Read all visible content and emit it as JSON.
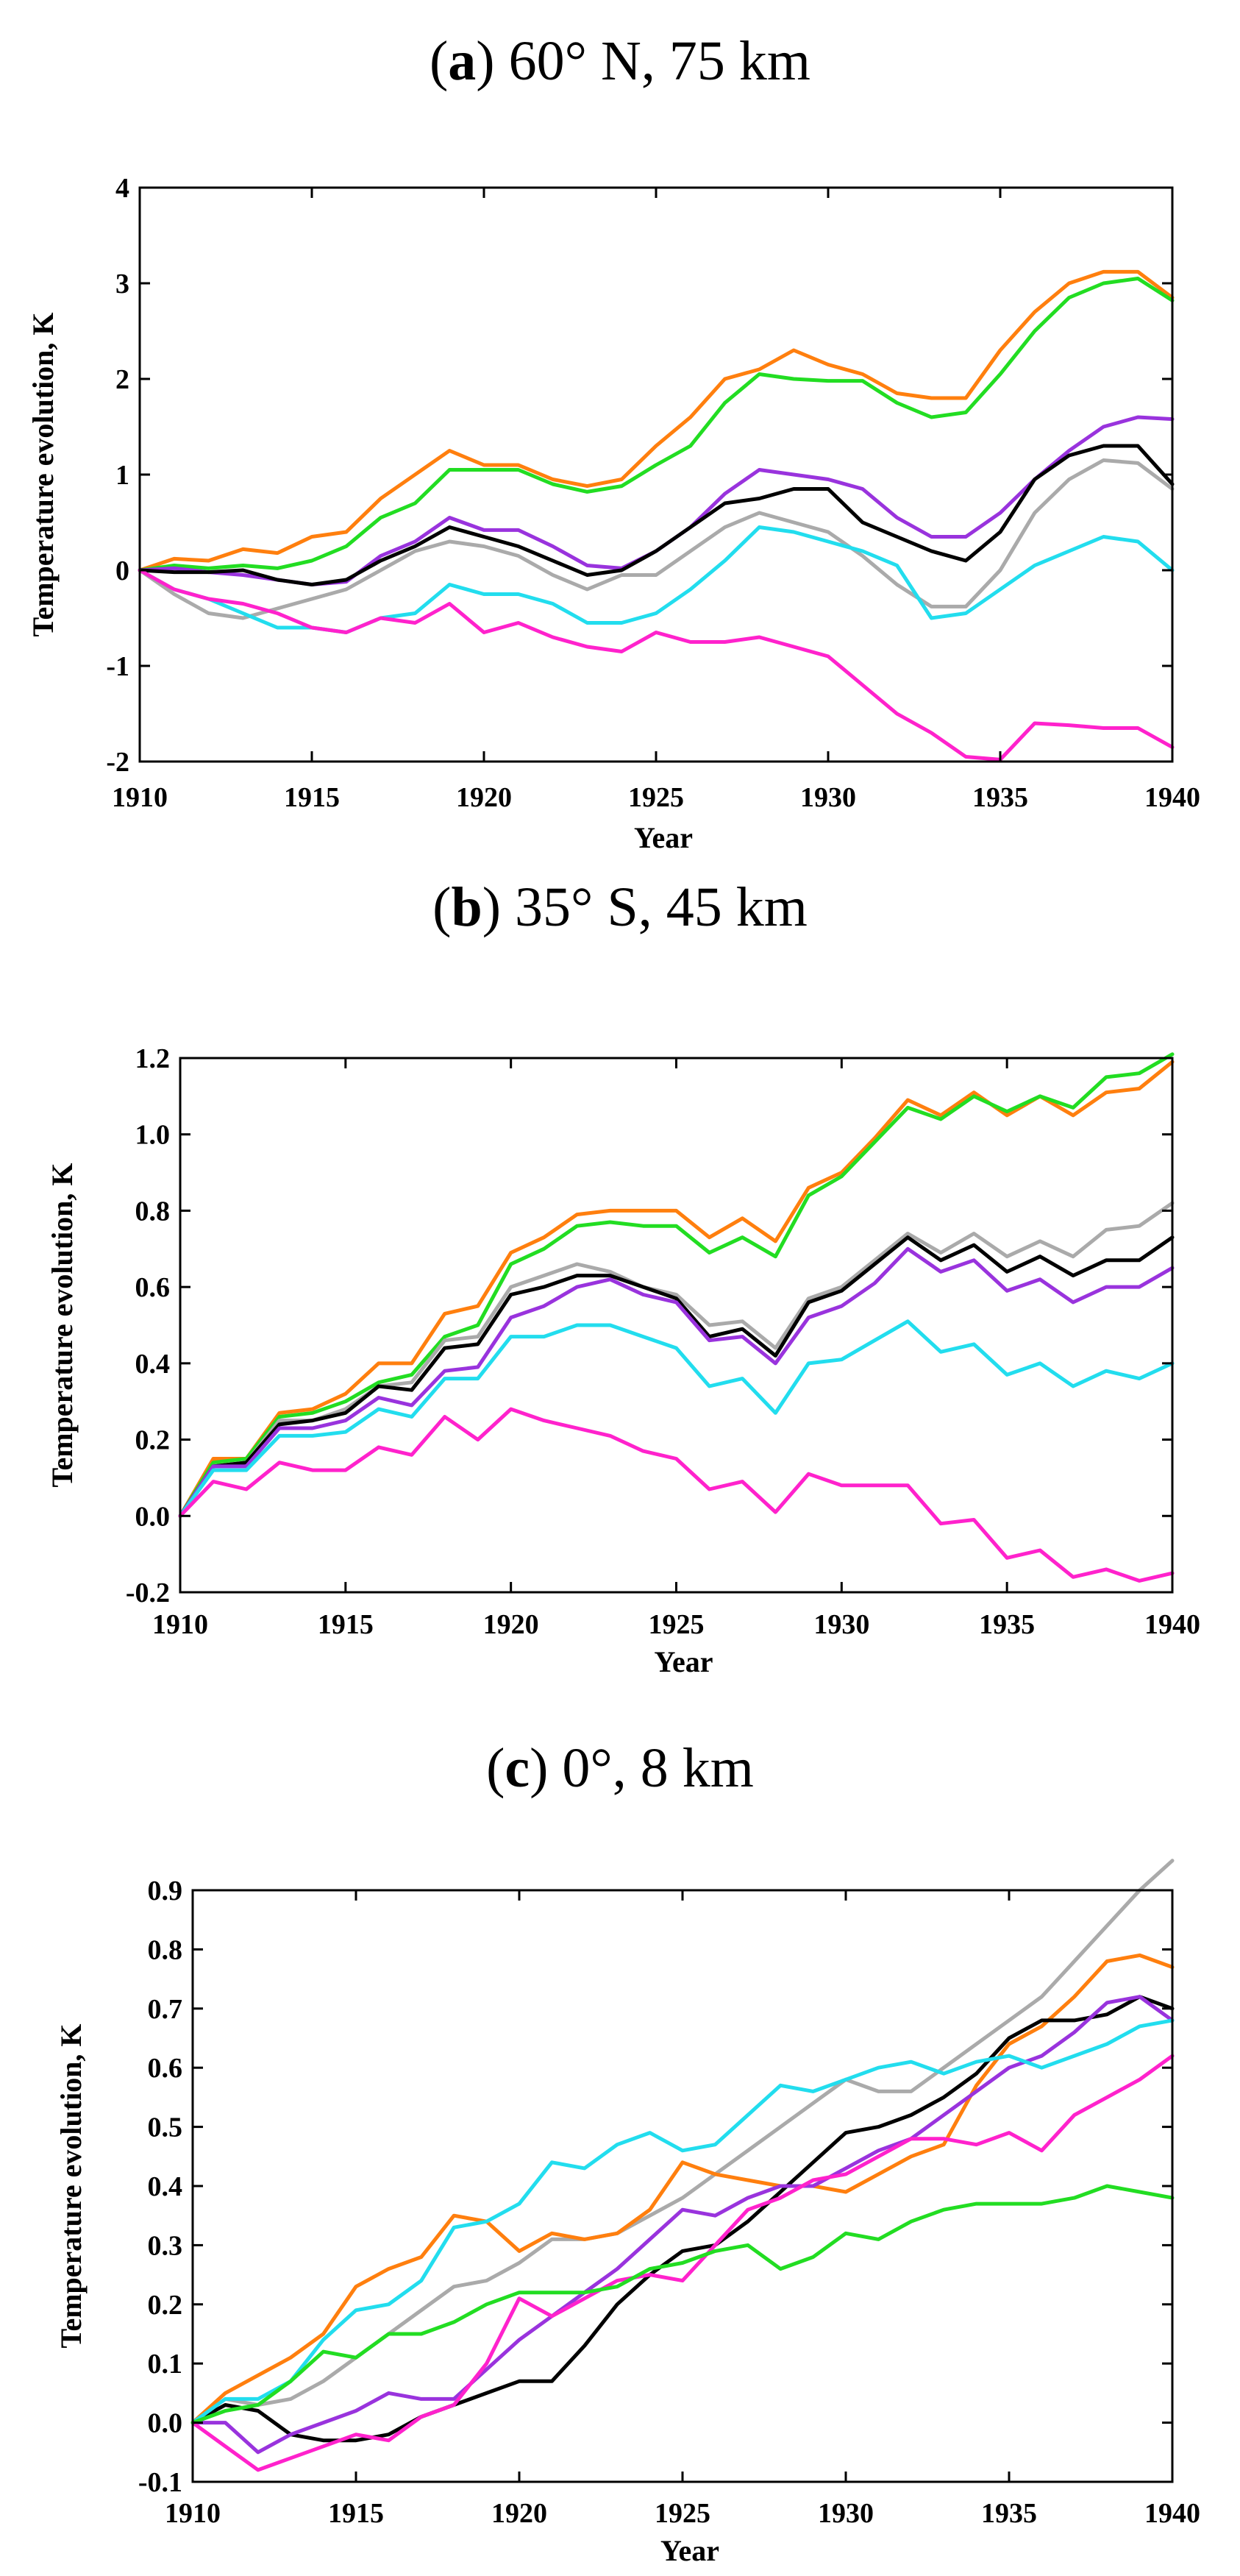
{
  "chart_data": [
    {
      "type": "line",
      "panel_letter": "a",
      "title": ") 60° N, 75 km",
      "title_open": "(",
      "xlabel": "Year",
      "ylabel": "Temperature evolution, K",
      "xlim": [
        1910,
        1940
      ],
      "ylim": [
        -2,
        4
      ],
      "xticks": [
        1910,
        1915,
        1920,
        1925,
        1930,
        1935,
        1940
      ],
      "yticks": [
        -2,
        -1,
        0,
        1,
        2,
        3,
        4
      ],
      "ytick_labels": [
        "-2",
        "-1",
        "0",
        "1",
        "2",
        "3",
        "4"
      ],
      "x": [
        1910,
        1911,
        1912,
        1913,
        1914,
        1915,
        1916,
        1917,
        1918,
        1919,
        1920,
        1921,
        1922,
        1923,
        1924,
        1925,
        1926,
        1927,
        1928,
        1929,
        1930,
        1931,
        1932,
        1933,
        1934,
        1935,
        1936,
        1937,
        1938,
        1939,
        1940
      ],
      "series": [
        {
          "name": "orange",
          "color": "#ff7f0e",
          "values": [
            0,
            0.12,
            0.1,
            0.22,
            0.18,
            0.35,
            0.4,
            0.75,
            1.0,
            1.25,
            1.1,
            1.1,
            0.95,
            0.88,
            0.95,
            1.3,
            1.6,
            2.0,
            2.1,
            2.3,
            2.15,
            2.05,
            1.85,
            1.8,
            1.8,
            2.3,
            2.7,
            3.0,
            3.12,
            3.12,
            2.85
          ]
        },
        {
          "name": "green",
          "color": "#22dd22",
          "values": [
            0,
            0.05,
            0.02,
            0.05,
            0.02,
            0.1,
            0.25,
            0.55,
            0.7,
            1.05,
            1.05,
            1.05,
            0.9,
            0.82,
            0.88,
            1.1,
            1.3,
            1.75,
            2.05,
            2.0,
            1.98,
            1.98,
            1.75,
            1.6,
            1.65,
            2.05,
            2.5,
            2.85,
            3.0,
            3.05,
            2.82
          ]
        },
        {
          "name": "purple",
          "color": "#9933dd",
          "values": [
            0,
            0.02,
            -0.02,
            -0.05,
            -0.1,
            -0.15,
            -0.12,
            0.15,
            0.3,
            0.55,
            0.42,
            0.42,
            0.25,
            0.05,
            0.02,
            0.2,
            0.45,
            0.8,
            1.05,
            1.0,
            0.95,
            0.85,
            0.55,
            0.35,
            0.35,
            0.6,
            0.95,
            1.25,
            1.5,
            1.6,
            1.58
          ]
        },
        {
          "name": "black",
          "color": "#000000",
          "values": [
            0,
            -0.02,
            -0.02,
            0.0,
            -0.1,
            -0.15,
            -0.1,
            0.1,
            0.25,
            0.45,
            0.35,
            0.25,
            0.1,
            -0.05,
            0.0,
            0.2,
            0.45,
            0.7,
            0.75,
            0.85,
            0.85,
            0.5,
            0.35,
            0.2,
            0.1,
            0.4,
            0.95,
            1.2,
            1.3,
            1.3,
            0.9
          ]
        },
        {
          "name": "gray",
          "color": "#aaaaaa",
          "values": [
            0,
            -0.25,
            -0.45,
            -0.5,
            -0.4,
            -0.3,
            -0.2,
            0.0,
            0.2,
            0.3,
            0.25,
            0.15,
            -0.05,
            -0.2,
            -0.05,
            -0.05,
            0.2,
            0.45,
            0.6,
            0.5,
            0.4,
            0.15,
            -0.15,
            -0.38,
            -0.38,
            0.0,
            0.6,
            0.95,
            1.15,
            1.12,
            0.85
          ]
        },
        {
          "name": "cyan",
          "color": "#22ddee",
          "values": [
            0,
            -0.2,
            -0.3,
            -0.45,
            -0.6,
            -0.6,
            -0.65,
            -0.5,
            -0.45,
            -0.15,
            -0.25,
            -0.25,
            -0.35,
            -0.55,
            -0.55,
            -0.45,
            -0.2,
            0.1,
            0.45,
            0.4,
            0.3,
            0.2,
            0.05,
            -0.5,
            -0.45,
            -0.2,
            0.05,
            0.2,
            0.35,
            0.3,
            0.0
          ]
        },
        {
          "name": "magenta",
          "color": "#ff22cc",
          "values": [
            0,
            -0.2,
            -0.3,
            -0.35,
            -0.45,
            -0.6,
            -0.65,
            -0.5,
            -0.55,
            -0.35,
            -0.65,
            -0.55,
            -0.7,
            -0.8,
            -0.85,
            -0.65,
            -0.75,
            -0.75,
            -0.7,
            -0.8,
            -0.9,
            -1.2,
            -1.5,
            -1.7,
            -1.95,
            -1.98,
            -1.6,
            -1.62,
            -1.65,
            -1.65,
            -1.85
          ]
        }
      ]
    },
    {
      "type": "line",
      "panel_letter": "b",
      "title": ") 35° S, 45 km",
      "title_open": "(",
      "xlabel": "Year",
      "ylabel": "Temperature evolution, K",
      "xlim": [
        1910,
        1940
      ],
      "ylim": [
        -0.2,
        1.2
      ],
      "xticks": [
        1910,
        1915,
        1920,
        1925,
        1930,
        1935,
        1940
      ],
      "yticks": [
        -0.2,
        0.0,
        0.2,
        0.4,
        0.6,
        0.8,
        1.0,
        1.2
      ],
      "ytick_labels": [
        "-0.2",
        "0.0",
        "0.2",
        "0.4",
        "0.6",
        "0.8",
        "1.0",
        "1.2"
      ],
      "x": [
        1910,
        1911,
        1912,
        1913,
        1914,
        1915,
        1916,
        1917,
        1918,
        1919,
        1920,
        1921,
        1922,
        1923,
        1924,
        1925,
        1926,
        1927,
        1928,
        1929,
        1930,
        1931,
        1932,
        1933,
        1934,
        1935,
        1936,
        1937,
        1938,
        1939,
        1940
      ],
      "series": [
        {
          "name": "orange",
          "color": "#ff7f0e",
          "values": [
            0,
            0.15,
            0.15,
            0.27,
            0.28,
            0.32,
            0.4,
            0.4,
            0.53,
            0.55,
            0.69,
            0.73,
            0.79,
            0.8,
            0.8,
            0.8,
            0.73,
            0.78,
            0.72,
            0.86,
            0.9,
            0.99,
            1.09,
            1.05,
            1.11,
            1.05,
            1.1,
            1.05,
            1.11,
            1.12,
            1.19
          ]
        },
        {
          "name": "green",
          "color": "#22dd22",
          "values": [
            0,
            0.14,
            0.15,
            0.26,
            0.27,
            0.3,
            0.35,
            0.37,
            0.47,
            0.5,
            0.66,
            0.7,
            0.76,
            0.77,
            0.76,
            0.76,
            0.69,
            0.73,
            0.68,
            0.84,
            0.89,
            0.98,
            1.07,
            1.04,
            1.1,
            1.06,
            1.1,
            1.07,
            1.15,
            1.16,
            1.21
          ]
        },
        {
          "name": "gray",
          "color": "#aaaaaa",
          "values": [
            0,
            0.13,
            0.14,
            0.25,
            0.25,
            0.28,
            0.34,
            0.35,
            0.46,
            0.47,
            0.6,
            0.63,
            0.66,
            0.64,
            0.6,
            0.58,
            0.5,
            0.51,
            0.44,
            0.57,
            0.6,
            0.67,
            0.74,
            0.69,
            0.74,
            0.68,
            0.72,
            0.68,
            0.75,
            0.76,
            0.82
          ]
        },
        {
          "name": "black",
          "color": "#000000",
          "values": [
            0,
            0.13,
            0.14,
            0.24,
            0.25,
            0.27,
            0.34,
            0.33,
            0.44,
            0.45,
            0.58,
            0.6,
            0.63,
            0.63,
            0.6,
            0.57,
            0.47,
            0.49,
            0.42,
            0.56,
            0.59,
            0.66,
            0.73,
            0.67,
            0.71,
            0.64,
            0.68,
            0.63,
            0.67,
            0.67,
            0.73
          ]
        },
        {
          "name": "purple",
          "color": "#9933dd",
          "values": [
            0,
            0.13,
            0.13,
            0.23,
            0.23,
            0.25,
            0.31,
            0.29,
            0.38,
            0.39,
            0.52,
            0.55,
            0.6,
            0.62,
            0.58,
            0.56,
            0.46,
            0.47,
            0.4,
            0.52,
            0.55,
            0.61,
            0.7,
            0.64,
            0.67,
            0.59,
            0.62,
            0.56,
            0.6,
            0.6,
            0.65
          ]
        },
        {
          "name": "cyan",
          "color": "#22ddee",
          "values": [
            0,
            0.12,
            0.12,
            0.21,
            0.21,
            0.22,
            0.28,
            0.26,
            0.36,
            0.36,
            0.47,
            0.47,
            0.5,
            0.5,
            0.47,
            0.44,
            0.34,
            0.36,
            0.27,
            0.4,
            0.41,
            0.46,
            0.51,
            0.43,
            0.45,
            0.37,
            0.4,
            0.34,
            0.38,
            0.36,
            0.4
          ]
        },
        {
          "name": "magenta",
          "color": "#ff22cc",
          "values": [
            0,
            0.09,
            0.07,
            0.14,
            0.12,
            0.12,
            0.18,
            0.16,
            0.26,
            0.2,
            0.28,
            0.25,
            0.23,
            0.21,
            0.17,
            0.15,
            0.07,
            0.09,
            0.01,
            0.11,
            0.08,
            0.08,
            0.08,
            -0.02,
            -0.01,
            -0.11,
            -0.09,
            -0.16,
            -0.14,
            -0.17,
            -0.15
          ]
        }
      ]
    },
    {
      "type": "line",
      "panel_letter": "c",
      "title": ") 0°, 8 km",
      "title_open": "(",
      "xlabel": "Year",
      "ylabel": "Temperature evolution, K",
      "xlim": [
        1910,
        1940
      ],
      "ylim": [
        -0.1,
        0.9
      ],
      "xticks": [
        1910,
        1915,
        1920,
        1925,
        1930,
        1935,
        1940
      ],
      "yticks": [
        -0.1,
        0.0,
        0.1,
        0.2,
        0.3,
        0.4,
        0.5,
        0.6,
        0.7,
        0.8,
        0.9
      ],
      "ytick_labels": [
        "-0.1",
        "0.0",
        "0.1",
        "0.2",
        "0.3",
        "0.4",
        "0.5",
        "0.6",
        "0.7",
        "0.8",
        "0.9"
      ],
      "x": [
        1910,
        1911,
        1912,
        1913,
        1914,
        1915,
        1916,
        1917,
        1918,
        1919,
        1920,
        1921,
        1922,
        1923,
        1924,
        1925,
        1926,
        1927,
        1928,
        1929,
        1930,
        1931,
        1932,
        1933,
        1934,
        1935,
        1936,
        1937,
        1938,
        1939,
        1940
      ],
      "series": [
        {
          "name": "gray",
          "color": "#aaaaaa",
          "values": [
            0,
            0.04,
            0.03,
            0.04,
            0.07,
            0.11,
            0.15,
            0.19,
            0.23,
            0.24,
            0.27,
            0.31,
            0.31,
            0.32,
            0.35,
            0.38,
            0.42,
            0.46,
            0.5,
            0.54,
            0.58,
            0.56,
            0.56,
            0.6,
            0.64,
            0.68,
            0.72,
            0.78,
            0.84,
            0.9,
            0.95
          ]
        },
        {
          "name": "orange",
          "color": "#ff7f0e",
          "values": [
            0,
            0.05,
            0.08,
            0.11,
            0.15,
            0.23,
            0.26,
            0.28,
            0.35,
            0.34,
            0.29,
            0.32,
            0.31,
            0.32,
            0.36,
            0.44,
            0.42,
            0.41,
            0.4,
            0.4,
            0.39,
            0.42,
            0.45,
            0.47,
            0.57,
            0.64,
            0.67,
            0.72,
            0.78,
            0.79,
            0.77
          ]
        },
        {
          "name": "black",
          "color": "#000000",
          "values": [
            0,
            0.03,
            0.02,
            -0.02,
            -0.03,
            -0.03,
            -0.02,
            0.01,
            0.03,
            0.05,
            0.07,
            0.07,
            0.13,
            0.2,
            0.25,
            0.29,
            0.3,
            0.34,
            0.39,
            0.44,
            0.49,
            0.5,
            0.52,
            0.55,
            0.59,
            0.65,
            0.68,
            0.68,
            0.69,
            0.72,
            0.7
          ]
        },
        {
          "name": "purple",
          "color": "#9933dd",
          "values": [
            0,
            0.0,
            -0.05,
            -0.02,
            0.0,
            0.02,
            0.05,
            0.04,
            0.04,
            0.09,
            0.14,
            0.18,
            0.22,
            0.26,
            0.31,
            0.36,
            0.35,
            0.38,
            0.4,
            0.4,
            0.43,
            0.46,
            0.48,
            0.52,
            0.56,
            0.6,
            0.62,
            0.66,
            0.71,
            0.72,
            0.68
          ]
        },
        {
          "name": "cyan",
          "color": "#22ddee",
          "values": [
            0,
            0.04,
            0.04,
            0.07,
            0.14,
            0.19,
            0.2,
            0.24,
            0.33,
            0.34,
            0.37,
            0.44,
            0.43,
            0.47,
            0.49,
            0.46,
            0.47,
            0.52,
            0.57,
            0.56,
            0.58,
            0.6,
            0.61,
            0.59,
            0.61,
            0.62,
            0.6,
            0.62,
            0.64,
            0.67,
            0.68
          ]
        },
        {
          "name": "magenta",
          "color": "#ff22cc",
          "values": [
            0,
            -0.04,
            -0.08,
            -0.06,
            -0.04,
            -0.02,
            -0.03,
            0.01,
            0.03,
            0.1,
            0.21,
            0.18,
            0.21,
            0.24,
            0.25,
            0.24,
            0.3,
            0.36,
            0.38,
            0.41,
            0.42,
            0.45,
            0.48,
            0.48,
            0.47,
            0.49,
            0.46,
            0.52,
            0.55,
            0.58,
            0.62
          ]
        },
        {
          "name": "green",
          "color": "#22dd22",
          "values": [
            0,
            0.02,
            0.03,
            0.07,
            0.12,
            0.11,
            0.15,
            0.15,
            0.17,
            0.2,
            0.22,
            0.22,
            0.22,
            0.23,
            0.26,
            0.27,
            0.29,
            0.3,
            0.26,
            0.28,
            0.32,
            0.31,
            0.34,
            0.36,
            0.37,
            0.37,
            0.37,
            0.38,
            0.4,
            0.39,
            0.38
          ]
        }
      ]
    }
  ]
}
